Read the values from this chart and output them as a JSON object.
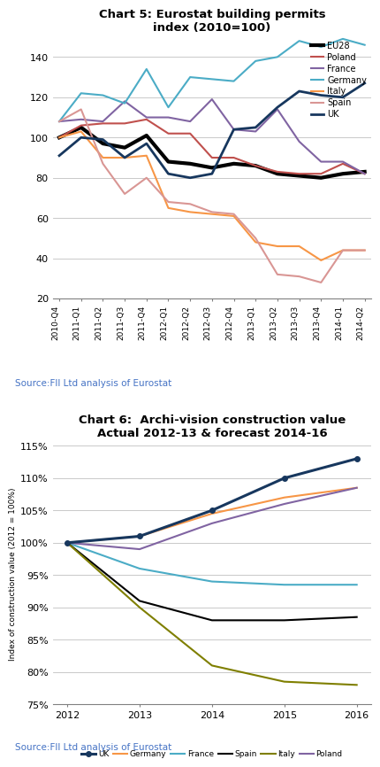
{
  "chart5": {
    "title": "Chart 5: Eurostat building permits\nindex (2010=100)",
    "xlabels": [
      "2010-Q4",
      "2011-Q1",
      "2011-Q2",
      "2011-Q3",
      "2011-Q4",
      "2012-Q1",
      "2012-Q2",
      "2012-Q3",
      "2012-Q4",
      "2013-Q1",
      "2013-Q2",
      "2013-Q3",
      "2013-Q4",
      "2014-Q1",
      "2014-Q2"
    ],
    "series": {
      "EU28": [
        100,
        105,
        97,
        95,
        101,
        88,
        87,
        85,
        87,
        86,
        82,
        81,
        80,
        82,
        83
      ],
      "Poland": [
        100,
        106,
        107,
        107,
        109,
        102,
        102,
        90,
        90,
        86,
        83,
        82,
        82,
        87,
        82
      ],
      "France": [
        108,
        109,
        108,
        118,
        110,
        110,
        108,
        119,
        104,
        103,
        114,
        98,
        88,
        88,
        82
      ],
      "Germany": [
        108,
        122,
        121,
        117,
        134,
        115,
        130,
        129,
        128,
        138,
        140,
        148,
        145,
        149,
        146
      ],
      "Italy": [
        100,
        103,
        90,
        90,
        91,
        65,
        63,
        62,
        61,
        48,
        46,
        46,
        39,
        44,
        44
      ],
      "Spain": [
        108,
        114,
        87,
        72,
        80,
        68,
        67,
        63,
        62,
        50,
        32,
        31,
        28,
        44,
        44
      ],
      "UK": [
        91,
        100,
        99,
        90,
        97,
        82,
        80,
        82,
        104,
        105,
        115,
        123,
        121,
        120,
        127
      ]
    },
    "colors": {
      "EU28": "#000000",
      "Poland": "#C0504D",
      "France": "#8064A2",
      "Germany": "#4BACC6",
      "Italy": "#F79646",
      "Spain": "#D99694",
      "UK": "#17375E"
    },
    "linewidths": {
      "EU28": 3,
      "Poland": 1.5,
      "France": 1.5,
      "Germany": 1.5,
      "Italy": 1.5,
      "Spain": 1.5,
      "UK": 2
    },
    "ylim": [
      20,
      150
    ],
    "yticks": [
      20,
      40,
      60,
      80,
      100,
      120,
      140
    ],
    "source": "Source:FII Ltd analysis of Eurostat"
  },
  "chart6": {
    "title": "Chart 6:  Archi-vision construction value\nActual 2012-13 & forecast 2014-16",
    "ylabel": "Index of construction value (2012 = 100%)",
    "xlabels": [
      2012,
      2013,
      2014,
      2015,
      2016
    ],
    "series": {
      "UK": [
        100,
        101,
        105,
        110,
        113
      ],
      "Germany": [
        100,
        101,
        104.5,
        107,
        108.5
      ],
      "France": [
        100,
        96,
        94,
        93.5,
        93.5
      ],
      "Spain": [
        100,
        91,
        88,
        88,
        88.5
      ],
      "Italy": [
        100,
        90,
        81,
        78.5,
        78
      ],
      "Poland": [
        100,
        99,
        103,
        106,
        108.5
      ]
    },
    "colors": {
      "UK": "#17375E",
      "Germany": "#F79646",
      "France": "#4BACC6",
      "Spain": "#000000",
      "Italy": "#7F7F00",
      "Poland": "#8064A2"
    },
    "ylim": [
      0.75,
      1.155
    ],
    "yticks": [
      0.75,
      0.8,
      0.85,
      0.9,
      0.95,
      1.0,
      1.05,
      1.1,
      1.15
    ],
    "ytick_labels": [
      "75%",
      "80%",
      "85%",
      "90%",
      "95%",
      "100%",
      "105%",
      "110%",
      "115%"
    ],
    "source": "Source:FII Ltd analysis of Eurostat"
  }
}
